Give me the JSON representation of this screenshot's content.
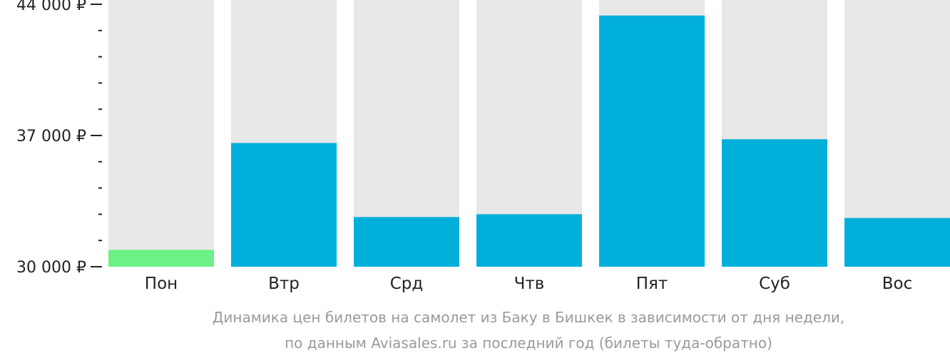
{
  "chart_data": {
    "type": "bar",
    "categories": [
      "Пон",
      "Втр",
      "Срд",
      "Чтв",
      "Пят",
      "Суб",
      "Вос"
    ],
    "values": [
      30900,
      36600,
      32650,
      32800,
      43400,
      36800,
      32600
    ],
    "ylim": [
      30000,
      44000
    ],
    "major_ticks": [
      30000,
      37000,
      44000
    ],
    "major_tick_labels": [
      "30 000 ₽",
      "37 000 ₽",
      "44 000 ₽"
    ],
    "minor_tick_step": 1400,
    "caption": [
      "Динамика цен билетов на самолет из Баку в Бишкек в зависимости от дня недели,",
      "по данным Aviasales.ru за последний год (билеты туда-обратно)"
    ],
    "colors": {
      "bar": "#00b0db",
      "bar_lowest": "#6cf186",
      "track": "#e8e8e8",
      "axis": "#222222",
      "caption": "#9a9a9a"
    }
  }
}
